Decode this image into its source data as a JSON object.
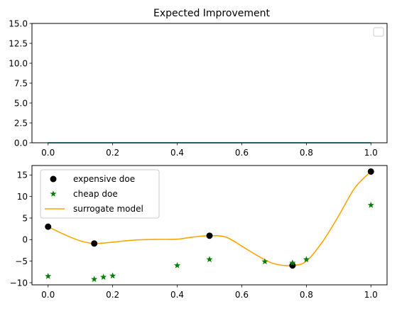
{
  "chart_data": [
    {
      "type": "line",
      "title": "Expected Improvement",
      "xlabel": "",
      "ylabel": "",
      "xlim": [
        -0.05,
        1.05
      ],
      "ylim": [
        0,
        15
      ],
      "xticks": [
        0.0,
        0.2,
        0.4,
        0.6,
        0.8,
        1.0
      ],
      "xtick_labels": [
        "0.0",
        "0.2",
        "0.4",
        "0.6",
        "0.8",
        "1.0"
      ],
      "yticks": [
        0.0,
        2.5,
        5.0,
        7.5,
        10.0,
        12.5,
        15.0
      ],
      "ytick_labels": [
        "0.0",
        "2.5",
        "5.0",
        "7.5",
        "10.0",
        "12.5",
        "15.0"
      ],
      "legend": {
        "placement": "top-right",
        "entries": []
      },
      "series": [
        {
          "x": [
            0.0,
            1.0
          ],
          "y": [
            0.0,
            0.0
          ],
          "color": "#1f77b4"
        },
        {
          "x": [
            0.0,
            1.0
          ],
          "y": [
            0.0,
            0.0
          ],
          "color": "#17becf"
        }
      ]
    },
    {
      "type": "scatter",
      "title": "",
      "xlabel": "",
      "ylabel": "",
      "xlim": [
        -0.05,
        1.05
      ],
      "ylim": [
        -10.5,
        17.2
      ],
      "xticks": [
        0.0,
        0.2,
        0.4,
        0.6,
        0.8,
        1.0
      ],
      "xtick_labels": [
        "0.0",
        "0.2",
        "0.4",
        "0.6",
        "0.8",
        "1.0"
      ],
      "yticks": [
        -10,
        -5,
        0,
        5,
        10,
        15
      ],
      "ytick_labels": [
        "−10",
        "−5",
        "0",
        "5",
        "10",
        "15"
      ],
      "legend": {
        "placement": "top-left",
        "entries": [
          "expensive doe",
          "cheap doe",
          "surrogate model"
        ]
      },
      "series": [
        {
          "name": "expensive doe",
          "marker": "circle",
          "color": "#000000",
          "x": [
            0.0,
            0.1429,
            0.5,
            0.7571,
            1.0
          ],
          "y": [
            3.0,
            -0.9,
            0.9,
            -6.0,
            15.8
          ]
        },
        {
          "name": "cheap doe",
          "marker": "star",
          "color": "#008000",
          "x": [
            0.0,
            0.1429,
            0.1714,
            0.2,
            0.4,
            0.5,
            0.6714,
            0.7571,
            0.8,
            1.0
          ],
          "y": [
            -8.5,
            -9.2,
            -8.7,
            -8.4,
            -6.0,
            -4.6,
            -5.1,
            -5.4,
            -4.6,
            8.0
          ]
        },
        {
          "name": "surrogate model",
          "marker": "line",
          "color": "#ffa500",
          "x": [
            0.0,
            0.05,
            0.1,
            0.1429,
            0.2,
            0.25,
            0.3,
            0.35,
            0.4,
            0.45,
            0.5,
            0.55,
            0.6,
            0.65,
            0.7,
            0.7571,
            0.8,
            0.85,
            0.9,
            0.95,
            1.0
          ],
          "y": [
            3.0,
            1.2,
            -0.3,
            -0.9,
            -0.6,
            -0.2,
            0.0,
            0.05,
            0.1,
            0.6,
            0.9,
            0.6,
            -1.5,
            -3.8,
            -5.6,
            -6.0,
            -5.0,
            -0.5,
            5.5,
            12.0,
            15.8
          ]
        }
      ]
    }
  ]
}
